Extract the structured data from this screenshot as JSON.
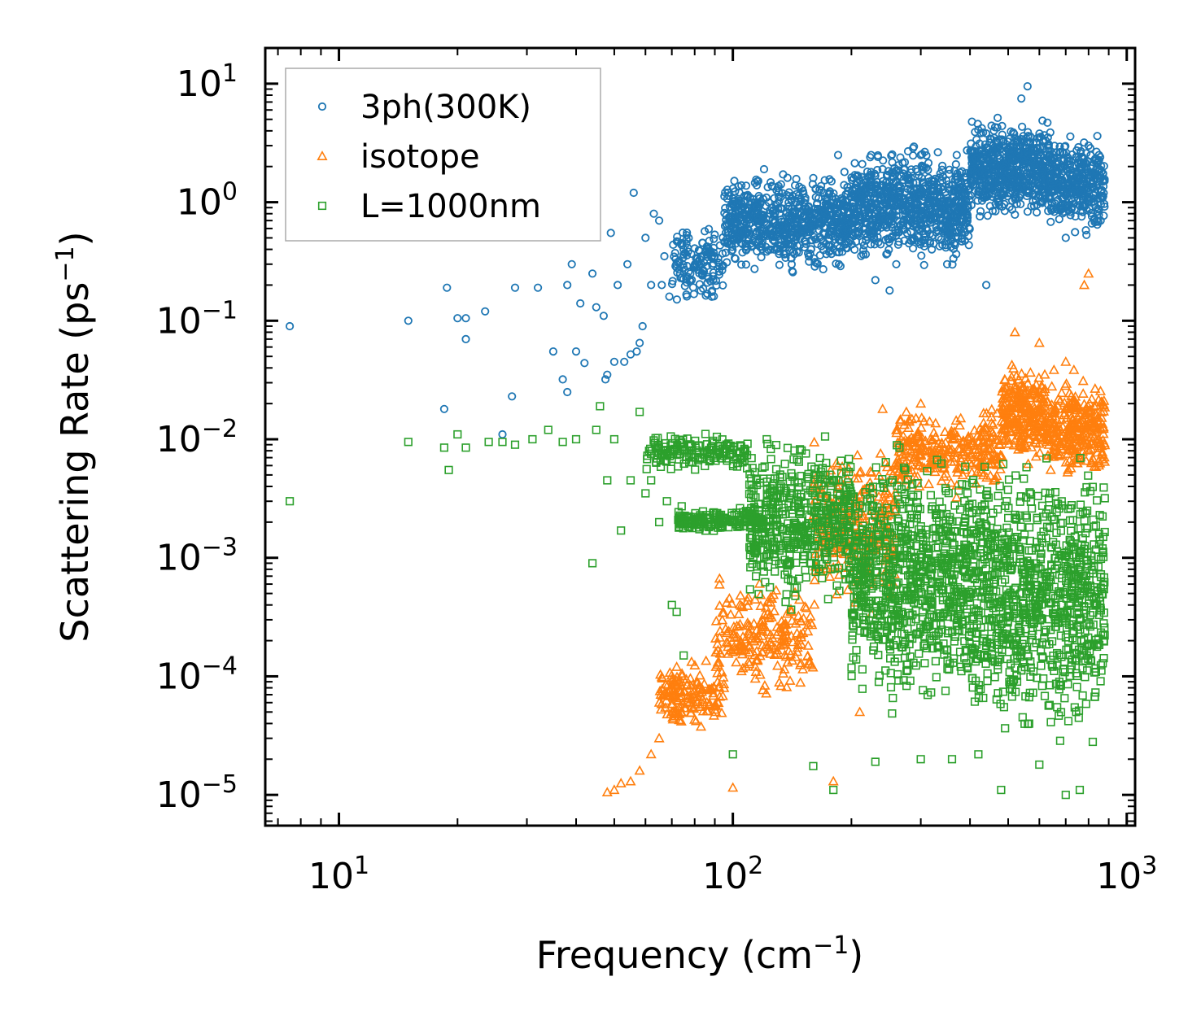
{
  "chart_data": {
    "type": "scatter",
    "title": "",
    "xlabel": "Frequency (cm",
    "xlabel_sup": "−1",
    "xlabel_end": ")",
    "ylabel": "Scattering Rate (ps",
    "ylabel_sup": "−1",
    "ylabel_end": ")",
    "xscale": "log",
    "yscale": "log",
    "xlim": [
      6.5,
      1050
    ],
    "ylim": [
      5.5e-06,
      20
    ],
    "legend_position": "top-left",
    "x_ticks": [
      {
        "value": 10,
        "base": "10",
        "exp": "1"
      },
      {
        "value": 100,
        "base": "10",
        "exp": "2"
      },
      {
        "value": 1000,
        "base": "10",
        "exp": "3"
      }
    ],
    "y_ticks": [
      {
        "value": 10,
        "base": "10",
        "exp": "1"
      },
      {
        "value": 1,
        "base": "10",
        "exp": "0"
      },
      {
        "value": 0.1,
        "base": "10",
        "exp": "−1"
      },
      {
        "value": 0.01,
        "base": "10",
        "exp": "−2"
      },
      {
        "value": 0.001,
        "base": "10",
        "exp": "−3"
      },
      {
        "value": 0.0001,
        "base": "10",
        "exp": "−4"
      },
      {
        "value": 1e-05,
        "base": "10",
        "exp": "−5"
      }
    ],
    "series": [
      {
        "name": "3ph(300K)",
        "marker": "circle",
        "color": "#1f77b4",
        "points": [
          [
            7.5,
            0.09
          ],
          [
            15,
            0.1
          ],
          [
            18.5,
            0.018
          ],
          [
            18.8,
            0.19
          ],
          [
            20,
            0.105
          ],
          [
            21,
            0.07
          ],
          [
            21,
            0.105
          ],
          [
            23.5,
            0.12
          ],
          [
            26,
            0.011
          ],
          [
            27.5,
            0.023
          ],
          [
            28,
            0.19
          ],
          [
            32,
            0.19
          ],
          [
            35,
            0.055
          ],
          [
            37,
            0.032
          ],
          [
            38,
            0.025
          ],
          [
            38,
            0.2
          ],
          [
            39,
            0.3
          ],
          [
            40,
            0.055
          ],
          [
            41,
            0.14
          ],
          [
            42,
            0.044
          ],
          [
            44,
            0.25
          ],
          [
            45,
            0.13
          ],
          [
            47,
            0.11
          ],
          [
            47.5,
            0.032
          ],
          [
            48,
            0.035
          ],
          [
            49,
            0.55
          ],
          [
            50,
            0.045
          ],
          [
            51,
            0.2
          ],
          [
            53,
            0.045
          ],
          [
            54,
            0.3
          ],
          [
            55,
            0.052
          ],
          [
            56,
            1.2
          ],
          [
            57,
            0.055
          ],
          [
            58,
            0.065
          ],
          [
            59,
            0.09
          ],
          [
            60,
            0.5
          ],
          [
            62,
            0.2
          ],
          [
            63,
            0.8
          ],
          [
            65,
            0.7
          ],
          [
            66,
            0.2
          ],
          [
            67,
            0.35
          ],
          [
            69,
            0.16
          ],
          [
            72,
            0.28
          ],
          [
            75,
            0.28
          ],
          [
            78,
            0.25
          ],
          [
            82,
            0.3
          ],
          [
            86,
            0.32
          ],
          [
            90,
            0.35
          ],
          [
            120,
            1.9
          ],
          [
            160,
            1.6
          ],
          [
            170,
            1.2
          ],
          [
            178,
            1.5
          ],
          [
            185,
            2.5
          ],
          [
            192,
            1.8
          ],
          [
            230,
            0.22
          ],
          [
            240,
            1.9
          ],
          [
            250,
            0.18
          ],
          [
            260,
            0.3
          ],
          [
            280,
            0.45
          ],
          [
            300,
            2.5
          ],
          [
            320,
            0.4
          ],
          [
            350,
            0.3
          ],
          [
            440,
            0.2
          ],
          [
            540,
            7.5
          ],
          [
            560,
            9.5
          ],
          [
            700,
            0.5
          ],
          [
            750,
            1.2
          ],
          [
            800,
            3.0
          ],
          [
            850,
            2.5
          ]
        ],
        "clusters": [
          {
            "x": [
              70,
              95
            ],
            "y": [
              0.12,
              0.75
            ],
            "n": 140
          },
          {
            "x": [
              95,
              200
            ],
            "y": [
              0.22,
              2.0
            ],
            "n": 700
          },
          {
            "x": [
              200,
              400
            ],
            "y": [
              0.25,
              3.5
            ],
            "n": 800
          },
          {
            "x": [
              400,
              640
            ],
            "y": [
              0.6,
              6.0
            ],
            "n": 600
          },
          {
            "x": [
              640,
              880
            ],
            "y": [
              0.45,
              4.5
            ],
            "n": 350
          }
        ]
      },
      {
        "name": "isotope",
        "marker": "triangle",
        "color": "#ff7f0e",
        "points": [
          [
            48,
            1.05e-05
          ],
          [
            50,
            1.1e-05
          ],
          [
            52,
            1.25e-05
          ],
          [
            55,
            1.3e-05
          ],
          [
            58,
            1.6e-05
          ],
          [
            62,
            2.2e-05
          ],
          [
            65,
            3e-05
          ],
          [
            70,
            5e-05
          ],
          [
            72,
            0.00012
          ],
          [
            100,
            1.15e-05
          ],
          [
            180,
            1.3e-05
          ],
          [
            210,
            5e-05
          ],
          [
            240,
            0.018
          ],
          [
            300,
            0.02
          ],
          [
            520,
            0.08
          ],
          [
            600,
            0.065
          ],
          [
            700,
            0.045
          ],
          [
            780,
            0.2
          ],
          [
            800,
            0.25
          ],
          [
            850,
            0.006
          ]
        ],
        "clusters": [
          {
            "x": [
              65,
              95
            ],
            "y": [
              3e-05,
              0.00015
            ],
            "n": 160
          },
          {
            "x": [
              90,
              160
            ],
            "y": [
              6e-05,
              0.0008
            ],
            "n": 220
          },
          {
            "x": [
              160,
              260
            ],
            "y": [
              0.0003,
              0.012
            ],
            "n": 250
          },
          {
            "x": [
              260,
              480
            ],
            "y": [
              0.003,
              0.02
            ],
            "n": 300
          },
          {
            "x": [
              480,
              620
            ],
            "y": [
              0.005,
              0.06
            ],
            "n": 250
          },
          {
            "x": [
              620,
              880
            ],
            "y": [
              0.004,
              0.04
            ],
            "n": 300
          }
        ]
      },
      {
        "name": "L=1000nm",
        "marker": "square",
        "color": "#2ca02c",
        "points": [
          [
            7.5,
            0.003
          ],
          [
            15,
            0.0095
          ],
          [
            18.5,
            0.0085
          ],
          [
            19,
            0.0055
          ],
          [
            20,
            0.011
          ],
          [
            21,
            0.0085
          ],
          [
            24,
            0.0095
          ],
          [
            26,
            0.0095
          ],
          [
            28,
            0.009
          ],
          [
            31,
            0.01
          ],
          [
            34,
            0.012
          ],
          [
            37,
            0.0095
          ],
          [
            40,
            0.01
          ],
          [
            44,
            0.0009
          ],
          [
            45,
            0.012
          ],
          [
            46,
            0.019
          ],
          [
            48,
            0.0045
          ],
          [
            50,
            0.01
          ],
          [
            52,
            0.0017
          ],
          [
            55,
            0.0045
          ],
          [
            58,
            0.017
          ],
          [
            60,
            0.0035
          ],
          [
            62,
            0.0045
          ],
          [
            65,
            0.002
          ],
          [
            68,
            0.003
          ],
          [
            70,
            0.0004
          ],
          [
            72,
            0.00035
          ],
          [
            75,
            0.00015
          ],
          [
            100,
            2.2e-05
          ],
          [
            160,
            1.75e-05
          ],
          [
            180,
            1.1e-05
          ],
          [
            230,
            1.9e-05
          ],
          [
            300,
            2e-05
          ],
          [
            360,
            2e-05
          ],
          [
            420,
            2.2e-05
          ],
          [
            480,
            1.1e-05
          ],
          [
            600,
            1.8e-05
          ],
          [
            700,
            1e-05
          ],
          [
            760,
            1.1e-05
          ],
          [
            820,
            2.8e-05
          ]
        ],
        "clusters": [
          {
            "x": [
              60,
              110
            ],
            "y": [
              0.005,
              0.012
            ],
            "n": 160
          },
          {
            "x": [
              72,
              120
            ],
            "y": [
              0.0016,
              0.0028
            ],
            "n": 180
          },
          {
            "x": [
              110,
              200
            ],
            "y": [
              0.0003,
              0.013
            ],
            "n": 500
          },
          {
            "x": [
              200,
              400
            ],
            "y": [
              4e-05,
              0.012
            ],
            "n": 800
          },
          {
            "x": [
              400,
              880
            ],
            "y": [
              2e-05,
              0.012
            ],
            "n": 900
          }
        ]
      }
    ]
  }
}
